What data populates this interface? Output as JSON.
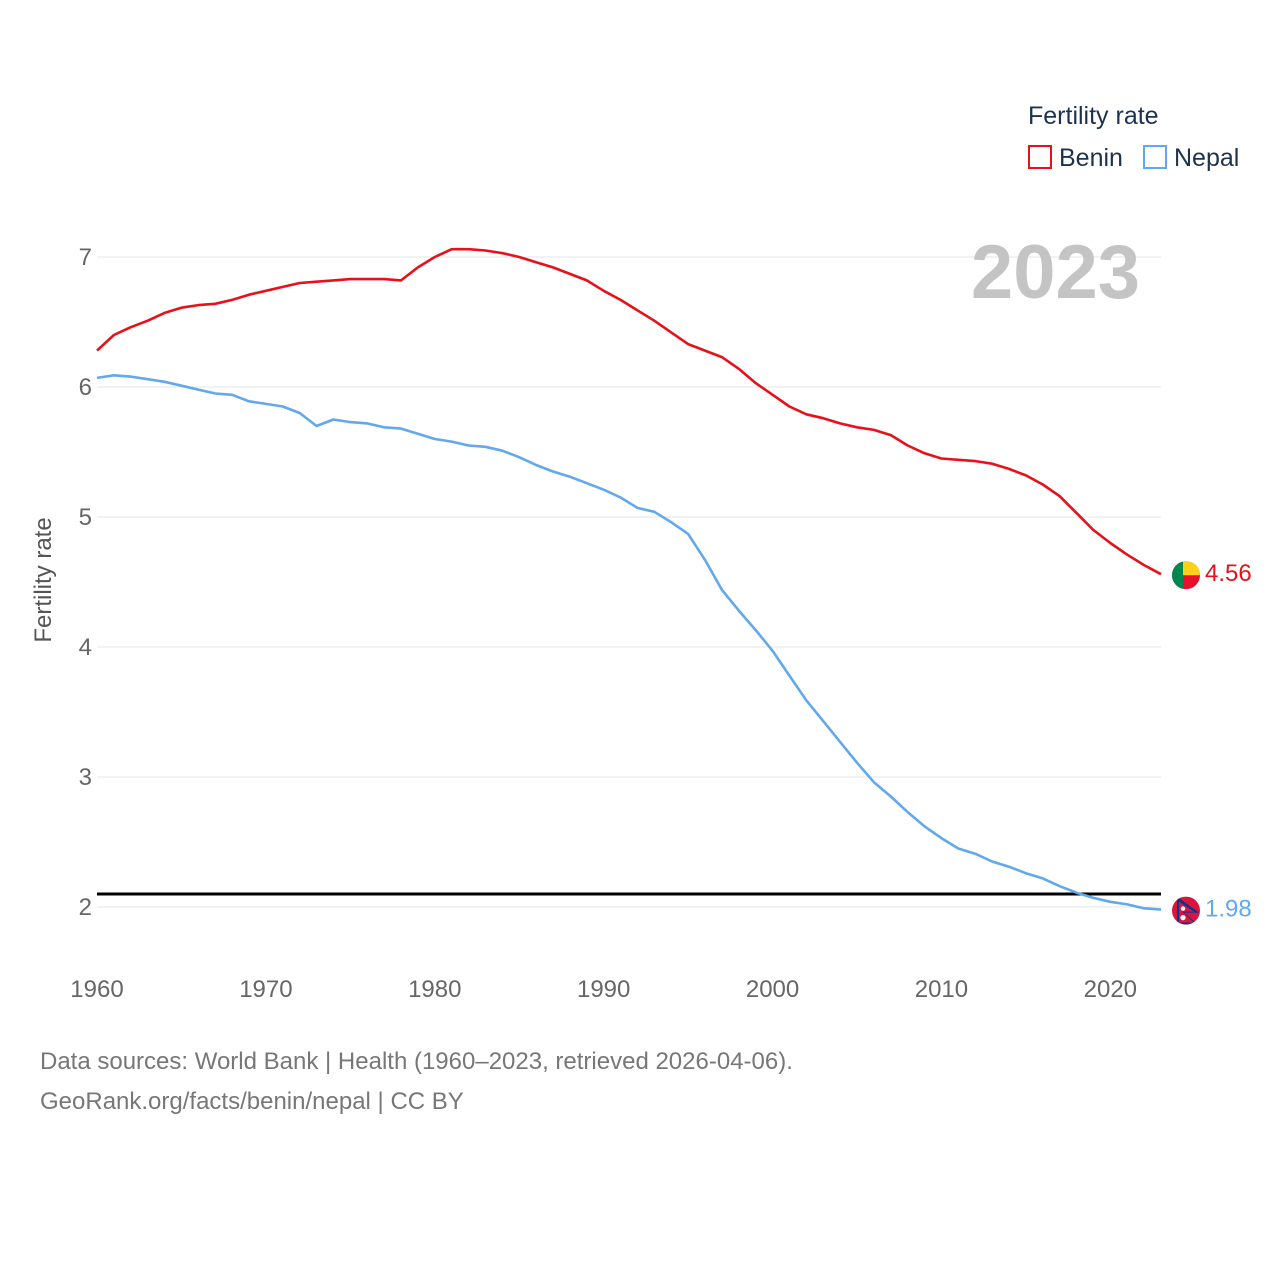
{
  "colors": {
    "benin": "#e8101a",
    "nepal": "#62a8ec",
    "reference_line": "#000000",
    "grid": "#e6e6e6"
  },
  "chart_data": {
    "type": "line",
    "title": "",
    "year_label": "2023",
    "xlabel": "",
    "ylabel": "Fertility rate",
    "xlim": [
      1960,
      2023
    ],
    "ylim": [
      1.5,
      7.5
    ],
    "x_ticks": [
      "1960",
      "1970",
      "1980",
      "1990",
      "2000",
      "2010",
      "2020"
    ],
    "y_ticks": [
      "2",
      "3",
      "4",
      "5",
      "6",
      "7"
    ],
    "grid": true,
    "legend": {
      "title": "Fertility rate",
      "position": "top-right",
      "entries": [
        "Benin",
        "Nepal"
      ]
    },
    "reference_line": {
      "y": 2.1
    },
    "x": [
      1960,
      1961,
      1962,
      1963,
      1964,
      1965,
      1966,
      1967,
      1968,
      1969,
      1970,
      1971,
      1972,
      1973,
      1974,
      1975,
      1976,
      1977,
      1978,
      1979,
      1980,
      1981,
      1982,
      1983,
      1984,
      1985,
      1986,
      1987,
      1988,
      1989,
      1990,
      1991,
      1992,
      1993,
      1994,
      1995,
      1996,
      1997,
      1998,
      1999,
      2000,
      2001,
      2002,
      2003,
      2004,
      2005,
      2006,
      2007,
      2008,
      2009,
      2010,
      2011,
      2012,
      2013,
      2014,
      2015,
      2016,
      2017,
      2018,
      2019,
      2020,
      2021,
      2022,
      2023
    ],
    "series": [
      {
        "name": "Benin",
        "end_label": "4.56",
        "flag": "benin-flag",
        "values": [
          6.28,
          6.4,
          6.46,
          6.51,
          6.57,
          6.61,
          6.63,
          6.64,
          6.67,
          6.71,
          6.74,
          6.77,
          6.8,
          6.81,
          6.82,
          6.83,
          6.83,
          6.83,
          6.82,
          6.92,
          7.0,
          7.06,
          7.06,
          7.05,
          7.03,
          7.0,
          6.96,
          6.92,
          6.87,
          6.82,
          6.74,
          6.67,
          6.59,
          6.51,
          6.42,
          6.33,
          6.28,
          6.23,
          6.14,
          6.03,
          5.94,
          5.85,
          5.79,
          5.76,
          5.72,
          5.69,
          5.67,
          5.63,
          5.55,
          5.49,
          5.45,
          5.44,
          5.43,
          5.41,
          5.37,
          5.32,
          5.25,
          5.16,
          5.03,
          4.9,
          4.8,
          4.71,
          4.63,
          4.56
        ]
      },
      {
        "name": "Nepal",
        "end_label": "1.98",
        "flag": "nepal-flag",
        "values": [
          6.07,
          6.09,
          6.08,
          6.06,
          6.04,
          6.01,
          5.98,
          5.95,
          5.94,
          5.89,
          5.87,
          5.85,
          5.8,
          5.7,
          5.75,
          5.73,
          5.72,
          5.69,
          5.68,
          5.64,
          5.6,
          5.58,
          5.55,
          5.54,
          5.51,
          5.46,
          5.4,
          5.35,
          5.31,
          5.26,
          5.21,
          5.15,
          5.07,
          5.04,
          4.96,
          4.87,
          4.67,
          4.44,
          4.28,
          4.13,
          3.97,
          3.78,
          3.59,
          3.43,
          3.27,
          3.11,
          2.96,
          2.85,
          2.73,
          2.62,
          2.53,
          2.45,
          2.41,
          2.35,
          2.31,
          2.26,
          2.22,
          2.16,
          2.11,
          2.07,
          2.04,
          2.02,
          1.99,
          1.98
        ]
      }
    ]
  },
  "footer": {
    "line1": "Data sources: World Bank | Health (1960–2023, retrieved 2026-04-06).",
    "line2": "GeoRank.org/facts/benin/nepal | CC BY"
  }
}
